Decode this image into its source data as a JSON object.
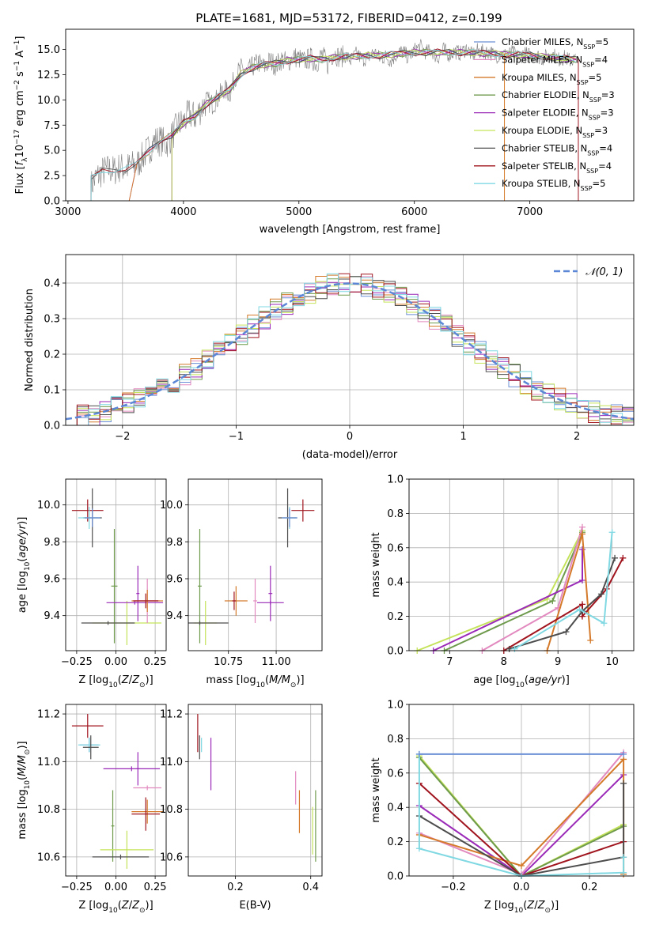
{
  "figure": {
    "title": "PLATE=1681, MJD=53172, FIBERID=0412, z=0.199"
  },
  "chart_data": [
    {
      "id": "spectrum",
      "type": "line",
      "xlabel": "wavelength [Angstrom, rest frame]",
      "ylabel": "Flux [f",
      "ylabel_full": "Flux [fλ10^-17 erg cm^-2 s^-1 A^-1]",
      "xlim": [
        2980,
        7900
      ],
      "ylim": [
        0,
        17
      ],
      "xticks": [
        3000,
        4000,
        5000,
        6000,
        7000
      ],
      "yticks": [
        0.0,
        2.5,
        5.0,
        7.5,
        10.0,
        12.5,
        15.0
      ],
      "grid": false,
      "legend_position": "right",
      "observed": {
        "color": "#808080",
        "x": [
          3200,
          3250,
          3300,
          3350,
          3400,
          3450,
          3500,
          3550,
          3600,
          3650,
          3700,
          3750,
          3800,
          3850,
          3900,
          3950,
          4000,
          4050,
          4100,
          4150,
          4200,
          4250,
          4300,
          4350,
          4400,
          4450,
          4500,
          4550,
          4600,
          4650,
          4700,
          4750,
          4800,
          4850,
          4900,
          4950,
          5000,
          5050,
          5100,
          5150,
          5200,
          5250,
          5300,
          5350,
          5400,
          5450,
          5500,
          5550,
          5600,
          5650,
          5700,
          5750,
          5800,
          5850,
          5900,
          5950,
          6000,
          6050,
          6100,
          6150,
          6200,
          6250,
          6300,
          6350,
          6400,
          6450,
          6500,
          6550,
          6600,
          6650,
          6700,
          6750,
          6800,
          6850,
          6900,
          6950,
          7000,
          7050,
          7100,
          7150,
          7200,
          7250,
          7300,
          7350,
          7400
        ],
        "y": [
          1.5,
          2.4,
          2.9,
          3.1,
          3.0,
          3.3,
          3.2,
          3.5,
          3.6,
          4.4,
          5.1,
          5.9,
          6.0,
          5.6,
          6.4,
          7.5,
          7.8,
          8.6,
          8.3,
          9.1,
          9.9,
          9.6,
          10.2,
          11.1,
          10.6,
          12.4,
          13.1,
          12.7,
          13.3,
          13.7,
          13.2,
          13.9,
          13.4,
          14.0,
          13.7,
          14.3,
          14.1,
          13.8,
          14.2,
          13.6,
          14.5,
          13.5,
          14.7,
          14.2,
          14.4,
          13.9,
          14.6,
          14.0,
          14.2,
          14.8,
          14.1,
          14.3,
          13.9,
          14.6,
          14.8,
          14.2,
          14.9,
          15.3,
          14.7,
          14.9,
          14.1,
          15.0,
          14.5,
          14.8,
          14.6,
          15.1,
          14.4,
          14.9,
          14.7,
          14.8,
          14.3,
          14.6,
          14.4,
          14.7,
          14.2,
          14.6,
          14.4,
          14.5,
          14.1,
          14.3,
          14.5,
          14.0,
          14.2,
          13.9,
          14.1
        ]
      },
      "models_x": [
        3200,
        3300,
        3400,
        3500,
        3600,
        3700,
        3800,
        3900,
        4000,
        4100,
        4200,
        4300,
        4400,
        4500,
        4600,
        4700,
        4800,
        4900,
        5000,
        5100,
        5200,
        5300,
        5400,
        5500,
        5600,
        5700,
        5800,
        5900,
        6000,
        6100,
        6200,
        6300,
        6400,
        6500,
        6600,
        6700,
        6800,
        6900,
        7000,
        7100,
        7200,
        7300,
        7400
      ],
      "models_y": [
        2.2,
        2.9,
        3.1,
        3.2,
        3.6,
        4.9,
        6.1,
        6.5,
        7.7,
        8.4,
        9.6,
        10.3,
        11.0,
        12.6,
        13.2,
        13.5,
        13.6,
        13.9,
        14.0,
        14.1,
        14.0,
        14.2,
        14.3,
        14.3,
        14.4,
        14.4,
        14.5,
        14.6,
        14.7,
        14.7,
        14.7,
        14.7,
        14.7,
        14.7,
        14.6,
        14.6,
        14.5,
        14.5,
        14.4,
        14.3,
        14.2,
        14.1,
        14.0
      ],
      "series": [
        {
          "name": "Chabrier MILES, N",
          "ssp": "5",
          "color": "#6b8fd6",
          "start": 3530
        },
        {
          "name": "Salpeter MILES, N",
          "ssp": "4",
          "color": "#e28abf",
          "start": 3530
        },
        {
          "name": "Kroupa MILES, N",
          "ssp": "5",
          "color": "#d47a2a",
          "start": 3530
        },
        {
          "name": "Chabrier ELODIE, N",
          "ssp": "3",
          "color": "#6e9a4c",
          "start": 3900
        },
        {
          "name": "Salpeter ELODIE, N",
          "ssp": "3",
          "color": "#9a2ab7",
          "start": 3900
        },
        {
          "name": "Kroupa ELODIE, N",
          "ssp": "3",
          "color": "#c5e35a",
          "start": 3900
        },
        {
          "name": "Chabrier STELIB, N",
          "ssp": "4",
          "color": "#4d4d4d",
          "start": 3200
        },
        {
          "name": "Salpeter STELIB, N",
          "ssp": "4",
          "color": "#a0141e",
          "start": 3200
        },
        {
          "name": "Kroupa STELIB, N",
          "ssp": "5",
          "color": "#7fd8e2",
          "start": 3200
        }
      ],
      "ssp_subscript": "SSP"
    },
    {
      "id": "residual_hist",
      "type": "step-histogram",
      "xlabel": "(data-model)/error",
      "ylabel": "Normed distribution",
      "xlim": [
        -2.5,
        2.5
      ],
      "ylim": [
        0,
        0.48
      ],
      "xticks": [
        -2,
        -1,
        0,
        1,
        2
      ],
      "yticks": [
        0.0,
        0.1,
        0.2,
        0.3,
        0.4
      ],
      "grid": true,
      "legend": "𝒩(0, 1)",
      "legend_position": "top-right",
      "gaussian_color": "#5b87d6",
      "bin_width": 0.1
    },
    {
      "id": "age_vs_Z",
      "type": "errorbar",
      "xlabel": "Z [log",
      "ylabel": "age [log",
      "xlim": [
        -0.32,
        0.32
      ],
      "ylim": [
        9.21,
        10.14
      ],
      "xticks": [
        -0.25,
        0.0,
        0.25
      ],
      "xticklabels": [
        "−0.25",
        "0.00",
        "0.25"
      ],
      "yticks": [
        9.4,
        9.6,
        9.8,
        10.0
      ],
      "grid": true,
      "points": [
        {
          "c": "#a0141e",
          "x": -0.18,
          "xe": 0.1,
          "y": 9.97,
          "ye": 0.06
        },
        {
          "c": "#4d4d4d",
          "x": -0.15,
          "xe": 0.06,
          "y": 9.93,
          "ye": 0.16
        },
        {
          "c": "#7fd8e2",
          "x": -0.17,
          "xe": 0.07,
          "y": 9.93,
          "ye": 0.06
        },
        {
          "c": "#6b8fd6",
          "x": -0.15,
          "xe": 0.05,
          "y": 9.93,
          "ye": 0.05
        },
        {
          "c": "#6e9a4c",
          "x": -0.01,
          "xe": 0.02,
          "y": 9.56,
          "ye": 0.31
        },
        {
          "c": "#c5e35a",
          "x": 0.07,
          "xe": 0.22,
          "y": 9.36,
          "ye": 0.12
        },
        {
          "c": "#4d4d4d",
          "x": -0.05,
          "xe": 0.17,
          "y": 9.36,
          "ye": 0.01
        },
        {
          "c": "#9a2ab7",
          "x": 0.12,
          "xe": 0.18,
          "y": 9.47,
          "ye": 0.01
        },
        {
          "c": "#9a2ab7",
          "x": 0.14,
          "xe": 0.01,
          "y": 9.52,
          "ye": 0.15
        },
        {
          "c": "#e28abf",
          "x": 0.2,
          "xe": 0.08,
          "y": 9.48,
          "ye": 0.12
        },
        {
          "c": "#d47a2a",
          "x": 0.2,
          "xe": 0.1,
          "y": 9.48,
          "ye": 0.06
        },
        {
          "c": "#a0141e",
          "x": 0.19,
          "xe": 0.08,
          "y": 9.48,
          "ye": 0.04
        }
      ]
    },
    {
      "id": "age_vs_mass",
      "type": "errorbar",
      "xlabel": "mass [log",
      "xlim": [
        10.54,
        11.24
      ],
      "ylim": [
        9.21,
        10.14
      ],
      "xticks": [
        10.75,
        11.0
      ],
      "xticklabels": [
        "10.75",
        "11.00"
      ],
      "yticks": [
        9.4,
        9.6,
        9.8,
        10.0
      ],
      "grid": true,
      "points": [
        {
          "c": "#a0141e",
          "x": 11.14,
          "xe": 0.06,
          "y": 9.97,
          "ye": 0.06
        },
        {
          "c": "#4d4d4d",
          "x": 11.06,
          "xe": 0.05,
          "y": 9.93,
          "ye": 0.16
        },
        {
          "c": "#7fd8e2",
          "x": 11.07,
          "xe": 0.04,
          "y": 9.93,
          "ye": 0.06
        },
        {
          "c": "#6b8fd6",
          "x": 11.07,
          "xe": 0.04,
          "y": 9.93,
          "ye": 0.05
        },
        {
          "c": "#6e9a4c",
          "x": 10.6,
          "xe": 0.01,
          "y": 9.56,
          "ye": 0.31
        },
        {
          "c": "#c5e35a",
          "x": 10.63,
          "xe": 0.06,
          "y": 9.36,
          "ye": 0.12
        },
        {
          "c": "#4d4d4d",
          "x": 10.6,
          "xe": 0.15,
          "y": 9.36,
          "ye": 0.01
        },
        {
          "c": "#9a2ab7",
          "x": 10.97,
          "xe": 0.07,
          "y": 9.47,
          "ye": 0.01
        },
        {
          "c": "#9a2ab7",
          "x": 10.97,
          "xe": 0.01,
          "y": 9.52,
          "ye": 0.15
        },
        {
          "c": "#e28abf",
          "x": 10.89,
          "xe": 0.01,
          "y": 9.48,
          "ye": 0.12
        },
        {
          "c": "#d47a2a",
          "x": 10.79,
          "xe": 0.06,
          "y": 9.48,
          "ye": 0.08
        },
        {
          "c": "#a0141e",
          "x": 10.78,
          "xe": 0.01,
          "y": 9.48,
          "ye": 0.05
        }
      ]
    },
    {
      "id": "massweight_vs_age",
      "type": "line",
      "xlabel": "age  [log",
      "ylabel": "mass weight",
      "xlim": [
        6.25,
        10.4
      ],
      "ylim": [
        0,
        1
      ],
      "xticks": [
        7,
        8,
        9,
        10
      ],
      "yticks": [
        0.0,
        0.2,
        0.4,
        0.6,
        0.8,
        1.0
      ],
      "grid": true,
      "series": [
        {
          "c": "#c5e35a",
          "x": [
            6.4,
            8.8,
            9.45
          ],
          "y": [
            0.0,
            0.3,
            0.7
          ]
        },
        {
          "c": "#6e9a4c",
          "x": [
            6.9,
            8.9,
            9.45
          ],
          "y": [
            0.0,
            0.29,
            0.69
          ]
        },
        {
          "c": "#9a2ab7",
          "x": [
            6.7,
            9.45,
            9.45
          ],
          "y": [
            0.0,
            0.41,
            0.59
          ]
        },
        {
          "c": "#e28abf",
          "x": [
            7.6,
            9.0,
            9.45
          ],
          "y": [
            0.0,
            0.25,
            0.72
          ]
        },
        {
          "c": "#d47a2a",
          "x": [
            8.8,
            9.45,
            9.6
          ],
          "y": [
            0.0,
            0.68,
            0.06
          ]
        },
        {
          "c": "#a0141e",
          "x": [
            8.0,
            9.45,
            9.45,
            9.9,
            10.2
          ],
          "y": [
            0.0,
            0.27,
            0.2,
            0.36,
            0.54
          ]
        },
        {
          "c": "#4d4d4d",
          "x": [
            8.1,
            9.15,
            9.45,
            9.8,
            10.05
          ],
          "y": [
            0.01,
            0.11,
            0.23,
            0.33,
            0.54
          ]
        },
        {
          "c": "#7fd8e2",
          "x": [
            8.2,
            9.4,
            9.85,
            10.0
          ],
          "y": [
            0.01,
            0.24,
            0.16,
            0.69
          ]
        }
      ]
    },
    {
      "id": "mass_vs_Z",
      "type": "errorbar",
      "xlabel": "Z [log",
      "ylabel": "mass [log",
      "xlim": [
        -0.32,
        0.32
      ],
      "ylim": [
        10.52,
        11.24
      ],
      "xticks": [
        -0.25,
        0.0,
        0.25
      ],
      "xticklabels": [
        "−0.25",
        "0.00",
        "0.25"
      ],
      "yticks": [
        10.6,
        10.8,
        11.0,
        11.2
      ],
      "grid": true,
      "points": [
        {
          "c": "#a0141e",
          "x": -0.18,
          "xe": 0.1,
          "y": 11.15,
          "ye": 0.05
        },
        {
          "c": "#6b8fd6",
          "x": -0.17,
          "xe": 0.06,
          "y": 11.07,
          "ye": 0.03
        },
        {
          "c": "#7fd8e2",
          "x": -0.17,
          "xe": 0.07,
          "y": 11.07,
          "ye": 0.03
        },
        {
          "c": "#4d4d4d",
          "x": -0.16,
          "xe": 0.05,
          "y": 11.06,
          "ye": 0.05
        },
        {
          "c": "#6e9a4c",
          "x": -0.02,
          "xe": 0.01,
          "y": 10.73,
          "ye": 0.15
        },
        {
          "c": "#c5e35a",
          "x": 0.07,
          "xe": 0.17,
          "y": 10.63,
          "ye": 0.08
        },
        {
          "c": "#4d4d4d",
          "x": 0.03,
          "xe": 0.18,
          "y": 10.6,
          "ye": 0.01
        },
        {
          "c": "#9a2ab7",
          "x": 0.1,
          "xe": 0.18,
          "y": 10.97,
          "ye": 0.01
        },
        {
          "c": "#9a2ab7",
          "x": 0.14,
          "xe": 0.01,
          "y": 10.97,
          "ye": 0.07
        },
        {
          "c": "#e28abf",
          "x": 0.2,
          "xe": 0.09,
          "y": 10.89,
          "ye": 0.01
        },
        {
          "c": "#d47a2a",
          "x": 0.2,
          "xe": 0.1,
          "y": 10.79,
          "ye": 0.05
        },
        {
          "c": "#a0141e",
          "x": 0.19,
          "xe": 0.09,
          "y": 10.78,
          "ye": 0.07
        }
      ]
    },
    {
      "id": "mass_vs_EBV",
      "type": "errorbar",
      "xlabel": "E(B-V)",
      "xlim": [
        0.075,
        0.43
      ],
      "ylim": [
        10.52,
        11.24
      ],
      "xticks": [
        0.2,
        0.4
      ],
      "xticklabels": [
        "0.2",
        "0.4"
      ],
      "yticks": [
        10.6,
        10.8,
        11.0,
        11.2
      ],
      "grid": true,
      "points": [
        {
          "c": "#a0141e",
          "x": 0.1,
          "xe": 0.0,
          "y": 11.12,
          "ye": 0.08
        },
        {
          "c": "#4d4d4d",
          "x": 0.105,
          "xe": 0.0,
          "y": 11.06,
          "ye": 0.05
        },
        {
          "c": "#7fd8e2",
          "x": 0.11,
          "xe": 0.0,
          "y": 11.07,
          "ye": 0.03
        },
        {
          "c": "#9a2ab7",
          "x": 0.135,
          "xe": 0.0,
          "y": 10.99,
          "ye": 0.11
        },
        {
          "c": "#e28abf",
          "x": 0.36,
          "xe": 0.0,
          "y": 10.89,
          "ye": 0.07
        },
        {
          "c": "#d47a2a",
          "x": 0.37,
          "xe": 0.0,
          "y": 10.79,
          "ye": 0.09
        },
        {
          "c": "#c5e35a",
          "x": 0.405,
          "xe": 0.0,
          "y": 10.71,
          "ye": 0.1
        },
        {
          "c": "#6e9a4c",
          "x": 0.413,
          "xe": 0.0,
          "y": 10.73,
          "ye": 0.15
        }
      ]
    },
    {
      "id": "massweight_vs_Z",
      "type": "line",
      "xlabel": "Z [log",
      "ylabel": "mass weight",
      "xlim": [
        -0.33,
        0.33
      ],
      "ylim": [
        0,
        1
      ],
      "xticks": [
        -0.2,
        0.0,
        0.2
      ],
      "xticklabels": [
        "−0.2",
        "0.0",
        "0.2"
      ],
      "yticks": [
        0.0,
        0.2,
        0.4,
        0.6,
        0.8,
        1.0
      ],
      "grid": true,
      "series": [
        {
          "c": "#c5e35a",
          "x": [
            -0.3,
            0.0,
            0.3
          ],
          "y": [
            0.7,
            0.0,
            0.3
          ]
        },
        {
          "c": "#6e9a4c",
          "x": [
            -0.3,
            0.0,
            0.3
          ],
          "y": [
            0.69,
            0.0,
            0.29
          ]
        },
        {
          "c": "#9a2ab7",
          "x": [
            -0.3,
            0.0,
            0.3
          ],
          "y": [
            0.41,
            0.0,
            0.59
          ]
        },
        {
          "c": "#e28abf",
          "x": [
            -0.3,
            0.0,
            0.3
          ],
          "y": [
            0.25,
            0.01,
            0.72
          ]
        },
        {
          "c": "#d47a2a",
          "x": [
            -0.3,
            0.0,
            0.3,
            0.3
          ],
          "y": [
            0.24,
            0.06,
            0.68,
            0.01
          ]
        },
        {
          "c": "#a0141e",
          "x": [
            -0.3,
            0.0,
            0.3
          ],
          "y": [
            0.54,
            0.0,
            0.2
          ]
        },
        {
          "c": "#4d4d4d",
          "x": [
            -0.3,
            0.0,
            0.3,
            0.3
          ],
          "y": [
            0.35,
            0.0,
            0.11,
            0.54
          ]
        },
        {
          "c": "#7fd8e2",
          "x": [
            -0.3,
            -0.3,
            0.0,
            0.3,
            0.3
          ],
          "y": [
            0.71,
            0.16,
            0.0,
            0.02,
            0.11
          ]
        },
        {
          "c": "#6b8fd6",
          "x": [
            -0.3,
            0.3
          ],
          "y": [
            0.71,
            0.71
          ]
        }
      ]
    }
  ]
}
